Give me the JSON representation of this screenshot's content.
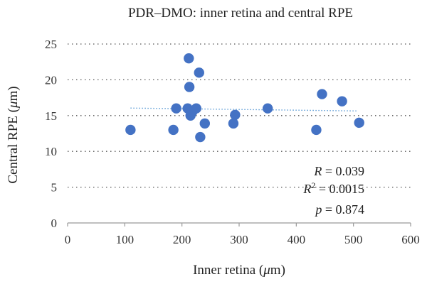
{
  "chart_data": {
    "type": "scatter",
    "title": "PDR–DMO: inner retina and central RPE",
    "xlabel_prefix": "Inner retina (",
    "xlabel_unit": "μ",
    "xlabel_suffix": "m)",
    "ylabel_prefix": "Central RPE (",
    "ylabel_unit": "μ",
    "ylabel_suffix": "m)",
    "xlim": [
      0,
      600
    ],
    "ylim": [
      0,
      25
    ],
    "xticks": [
      0,
      100,
      200,
      300,
      400,
      500,
      600
    ],
    "yticks": [
      0,
      5,
      10,
      15,
      20,
      25
    ],
    "grid": "horizontal dotted",
    "point_color": "#4472C4",
    "trendline_color": "#5B9BD5",
    "trendline": {
      "x": [
        110,
        505
      ],
      "y": [
        16.05,
        15.65
      ]
    },
    "points": [
      {
        "x": 110,
        "y": 13
      },
      {
        "x": 185,
        "y": 13
      },
      {
        "x": 190,
        "y": 16
      },
      {
        "x": 210,
        "y": 16
      },
      {
        "x": 212,
        "y": 23
      },
      {
        "x": 213,
        "y": 19
      },
      {
        "x": 215,
        "y": 15
      },
      {
        "x": 218,
        "y": 15.5
      },
      {
        "x": 225,
        "y": 16
      },
      {
        "x": 230,
        "y": 21
      },
      {
        "x": 232,
        "y": 12
      },
      {
        "x": 240,
        "y": 13.9
      },
      {
        "x": 290,
        "y": 13.9
      },
      {
        "x": 293,
        "y": 15.1
      },
      {
        "x": 350,
        "y": 16
      },
      {
        "x": 435,
        "y": 13
      },
      {
        "x": 445,
        "y": 18
      },
      {
        "x": 480,
        "y": 17
      },
      {
        "x": 510,
        "y": 14
      }
    ],
    "stats": {
      "r_key": "R",
      "r_value": " = 0.039",
      "r2_key": "R",
      "r2_sup": "2",
      "r2_value": " = 0.0015",
      "p_key": "p",
      "p_value": " = 0.874"
    }
  }
}
